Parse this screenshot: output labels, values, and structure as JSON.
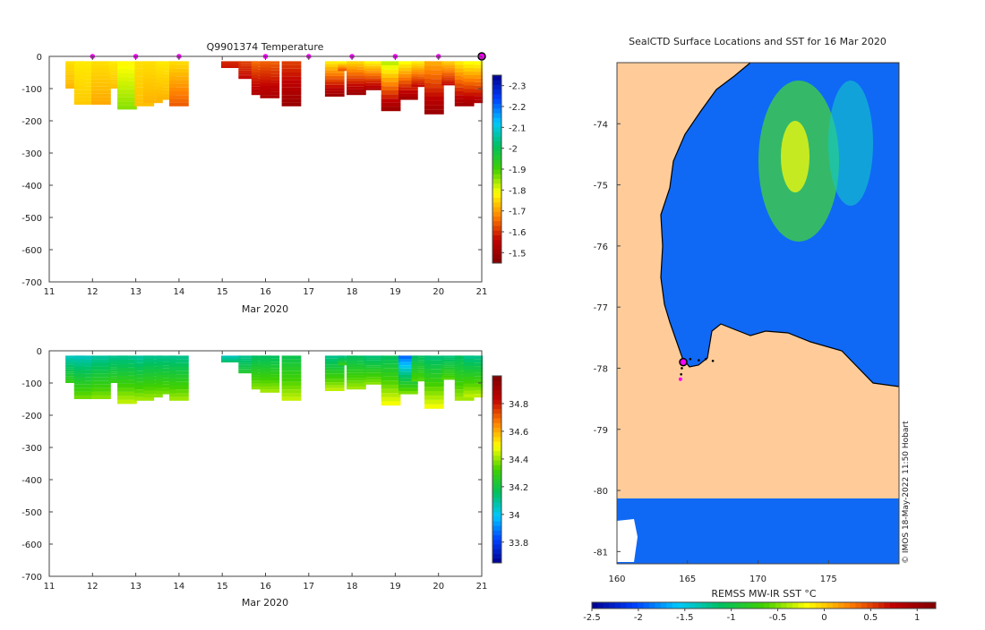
{
  "chart_data": [
    {
      "id": "temperature",
      "type": "heatmap",
      "title": "Q9901374  Temperature",
      "xlabel": "Mar 2020",
      "ylabel": "",
      "x_ticks": [
        11,
        12,
        13,
        14,
        15,
        16,
        17,
        18,
        19,
        20,
        21
      ],
      "y_ticks": [
        0,
        -100,
        -200,
        -300,
        -400,
        -500,
        -600,
        -700
      ],
      "xlim": [
        11,
        21
      ],
      "ylim": [
        -700,
        0
      ],
      "colorbar": {
        "min": -2.35,
        "max": -1.45,
        "ticks": [
          -1.5,
          -1.6,
          -1.7,
          -1.8,
          -1.9,
          -2,
          -2.1,
          -2.2,
          -2.3
        ],
        "colors": [
          "#00008f",
          "#0040ff",
          "#00c8ff",
          "#00c060",
          "#40d000",
          "#ffff00",
          "#ff8000",
          "#c00000",
          "#800000"
        ]
      },
      "surface_markers": [
        12,
        13,
        14,
        16,
        17,
        18,
        19,
        20
      ],
      "current_position": 21,
      "profiles": [
        {
          "t": 11.6,
          "depth": 100,
          "top": -1.76,
          "bottom": -1.72
        },
        {
          "t": 11.8,
          "depth": 150,
          "top": -1.77,
          "bottom": -1.74
        },
        {
          "t": 12.2,
          "depth": 150,
          "top": -1.76,
          "bottom": -1.71
        },
        {
          "t": 12.6,
          "depth": 100,
          "top": -1.77,
          "bottom": -1.73
        },
        {
          "t": 12.8,
          "depth": 165,
          "top": -1.78,
          "bottom": -1.86
        },
        {
          "t": 13.2,
          "depth": 155,
          "top": -1.76,
          "bottom": -1.73
        },
        {
          "t": 13.4,
          "depth": 145,
          "top": -1.76,
          "bottom": -1.72
        },
        {
          "t": 13.7,
          "depth": 135,
          "top": -1.77,
          "bottom": -1.72
        },
        {
          "t": 14.0,
          "depth": 155,
          "top": -1.76,
          "bottom": -1.64
        },
        {
          "t": 15.2,
          "depth": 35,
          "top": -1.6,
          "bottom": -1.58
        },
        {
          "t": 15.6,
          "depth": 70,
          "top": -1.62,
          "bottom": -1.56
        },
        {
          "t": 15.9,
          "depth": 120,
          "top": -1.66,
          "bottom": -1.53
        },
        {
          "t": 16.1,
          "depth": 130,
          "top": -1.65,
          "bottom": -1.52
        },
        {
          "t": 16.6,
          "depth": 155,
          "top": -1.62,
          "bottom": -1.49
        },
        {
          "t": 17.6,
          "depth": 125,
          "top": -1.78,
          "bottom": -1.49
        },
        {
          "t": 17.9,
          "depth": 45,
          "top": -1.8,
          "bottom": -1.62
        },
        {
          "t": 18.1,
          "depth": 120,
          "top": -1.76,
          "bottom": -1.49
        },
        {
          "t": 18.5,
          "depth": 105,
          "top": -1.79,
          "bottom": -1.52
        },
        {
          "t": 18.9,
          "depth": 170,
          "top": -1.84,
          "bottom": -1.49
        },
        {
          "t": 19.3,
          "depth": 135,
          "top": -1.8,
          "bottom": -1.5
        },
        {
          "t": 19.6,
          "depth": 95,
          "top": -1.78,
          "bottom": -1.56
        },
        {
          "t": 19.9,
          "depth": 180,
          "top": -1.72,
          "bottom": -1.49
        },
        {
          "t": 20.3,
          "depth": 90,
          "top": -1.75,
          "bottom": -1.56
        },
        {
          "t": 20.6,
          "depth": 155,
          "top": -1.78,
          "bottom": -1.5
        },
        {
          "t": 20.8,
          "depth": 145,
          "top": -1.8,
          "bottom": -1.52
        }
      ]
    },
    {
      "id": "salinity",
      "type": "heatmap",
      "title": "",
      "xlabel": "Mar 2020",
      "ylabel": "",
      "x_ticks": [
        11,
        12,
        13,
        14,
        15,
        16,
        17,
        18,
        19,
        20,
        21
      ],
      "y_ticks": [
        0,
        -100,
        -200,
        -300,
        -400,
        -500,
        -600,
        -700
      ],
      "xlim": [
        11,
        21
      ],
      "ylim": [
        -700,
        0
      ],
      "colorbar": {
        "min": 33.65,
        "max": 35.0,
        "ticks": [
          34.8,
          34.6,
          34.4,
          34.2,
          34,
          33.8
        ],
        "colors": [
          "#00008f",
          "#0040ff",
          "#00c8ff",
          "#00c060",
          "#40d000",
          "#ffff00",
          "#ff8000",
          "#c00000",
          "#800000"
        ]
      },
      "profiles": [
        {
          "t": 11.6,
          "depth": 100,
          "top": 34.05,
          "bottom": 34.3
        },
        {
          "t": 11.8,
          "depth": 150,
          "top": 34.05,
          "bottom": 34.38
        },
        {
          "t": 12.2,
          "depth": 150,
          "top": 34.08,
          "bottom": 34.4
        },
        {
          "t": 12.6,
          "depth": 100,
          "top": 34.1,
          "bottom": 34.3
        },
        {
          "t": 12.8,
          "depth": 165,
          "top": 34.1,
          "bottom": 34.45
        },
        {
          "t": 13.2,
          "depth": 155,
          "top": 34.08,
          "bottom": 34.42
        },
        {
          "t": 13.4,
          "depth": 145,
          "top": 34.1,
          "bottom": 34.4
        },
        {
          "t": 13.7,
          "depth": 135,
          "top": 34.1,
          "bottom": 34.38
        },
        {
          "t": 14.0,
          "depth": 155,
          "top": 34.1,
          "bottom": 34.42
        },
        {
          "t": 15.2,
          "depth": 35,
          "top": 34.05,
          "bottom": 34.15
        },
        {
          "t": 15.6,
          "depth": 70,
          "top": 34.1,
          "bottom": 34.25
        },
        {
          "t": 15.9,
          "depth": 120,
          "top": 34.15,
          "bottom": 34.4
        },
        {
          "t": 16.1,
          "depth": 130,
          "top": 34.15,
          "bottom": 34.42
        },
        {
          "t": 16.6,
          "depth": 155,
          "top": 34.18,
          "bottom": 34.45
        },
        {
          "t": 17.6,
          "depth": 125,
          "top": 34.1,
          "bottom": 34.45
        },
        {
          "t": 17.9,
          "depth": 45,
          "top": 34.1,
          "bottom": 34.3
        },
        {
          "t": 18.1,
          "depth": 120,
          "top": 34.15,
          "bottom": 34.42
        },
        {
          "t": 18.5,
          "depth": 105,
          "top": 34.12,
          "bottom": 34.4
        },
        {
          "t": 18.9,
          "depth": 170,
          "top": 34.15,
          "bottom": 34.5
        },
        {
          "t": 19.3,
          "depth": 135,
          "top": 33.85,
          "bottom": 34.4
        },
        {
          "t": 19.6,
          "depth": 95,
          "top": 34.15,
          "bottom": 34.35
        },
        {
          "t": 19.9,
          "depth": 180,
          "top": 34.12,
          "bottom": 34.5
        },
        {
          "t": 20.3,
          "depth": 90,
          "top": 34.12,
          "bottom": 34.35
        },
        {
          "t": 20.6,
          "depth": 155,
          "top": 34.15,
          "bottom": 34.42
        },
        {
          "t": 20.8,
          "depth": 145,
          "top": 34.1,
          "bottom": 34.45
        }
      ]
    },
    {
      "id": "sst_map",
      "type": "heatmap",
      "title": "SealCTD Surface Locations and SST for 16 Mar 2020",
      "xlabel": "",
      "ylabel": "",
      "x_ticks": [
        160,
        165,
        170,
        175
      ],
      "y_ticks": [
        -74,
        -75,
        -76,
        -77,
        -78,
        -79,
        -80,
        -81
      ],
      "xlim": [
        160,
        180
      ],
      "ylim": [
        -81.2,
        -73
      ],
      "colorbar": {
        "label": "REMSS MW-IR SST °C",
        "min": -2.5,
        "max": 1.2,
        "ticks": [
          -2.5,
          -2,
          -1.5,
          -1,
          -0.5,
          0,
          0.5,
          1
        ],
        "colors": [
          "#00008f",
          "#0040ff",
          "#00c8ff",
          "#00c060",
          "#40d000",
          "#ffff00",
          "#ff8000",
          "#c00000",
          "#800000"
        ]
      },
      "land_color": "#ffcc99",
      "ocean_color": "#0f69f5",
      "current_position": {
        "lon": 164.7,
        "lat": -77.9
      },
      "track": [
        {
          "lon": 164.7,
          "lat": -77.9
        },
        {
          "lon": 165.2,
          "lat": -77.85
        },
        {
          "lon": 165.8,
          "lat": -77.87
        },
        {
          "lon": 166.3,
          "lat": -77.85
        },
        {
          "lon": 166.8,
          "lat": -77.88
        },
        {
          "lon": 164.6,
          "lat": -78.0
        },
        {
          "lon": 164.55,
          "lat": -78.1
        },
        {
          "lon": 164.5,
          "lat": -78.18
        }
      ],
      "credit": "© IMOS 18-May-2022 11:50 Hobart"
    }
  ]
}
